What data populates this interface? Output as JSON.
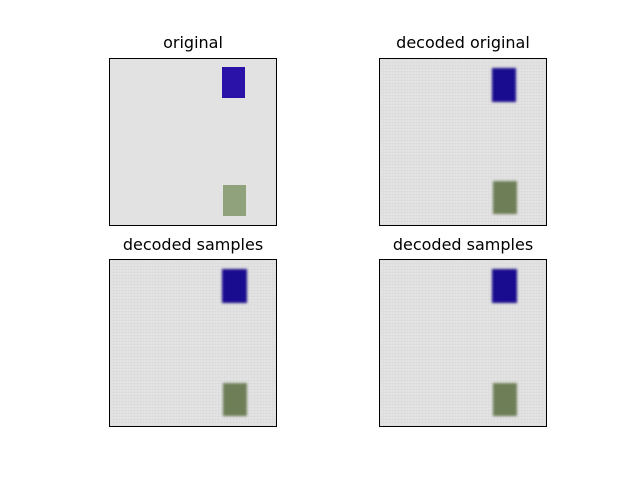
{
  "panels": [
    {
      "title": "original",
      "style": "crisp"
    },
    {
      "title": "decoded original",
      "style": "decoded"
    },
    {
      "title": "decoded samples",
      "style": "decoded"
    },
    {
      "title": "decoded samples",
      "style": "decoded"
    }
  ],
  "colors": {
    "background": "#e2e2e2",
    "blue_block": "#2a12a8",
    "green_block": "#8fa27b",
    "blue_block_decoded": "#1c0d9e",
    "green_block_decoded": "#7a8c60"
  }
}
